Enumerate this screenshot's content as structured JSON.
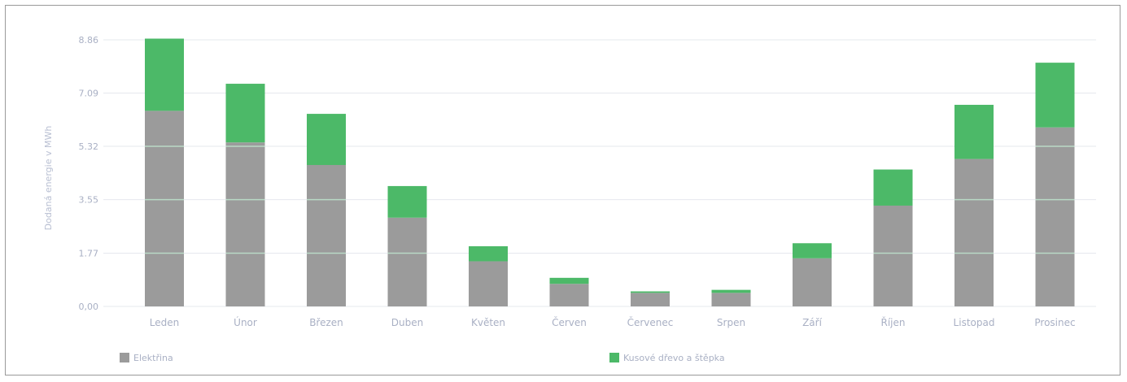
{
  "chart_data": {
    "type": "bar",
    "stacked": true,
    "ylabel": "Dodaná energie v MWh",
    "ylim": [
      0,
      8.86
    ],
    "yticks": [
      "8.86",
      "7.09",
      "5.32",
      "3.55",
      "1.77",
      "0,00"
    ],
    "ytick_values": [
      8.86,
      7.09,
      5.32,
      3.55,
      1.77,
      0
    ],
    "grid": true,
    "legend_position": "bottom",
    "categories": [
      "Leden",
      "Únor",
      "Březen",
      "Duben",
      "Květen",
      "Červen",
      "Červenec",
      "Srpen",
      "Září",
      "Říjen",
      "Listopad",
      "Prosinec"
    ],
    "series": [
      {
        "name": "Elektřina",
        "color": "#9b9b9b",
        "values": [
          6.5,
          5.45,
          4.7,
          2.95,
          1.5,
          0.75,
          0.45,
          0.45,
          1.6,
          3.35,
          4.9,
          5.95
        ]
      },
      {
        "name": "Kusové dřevo a štěpka",
        "color": "#4cb968",
        "values": [
          2.4,
          1.95,
          1.7,
          1.05,
          0.5,
          0.2,
          0.05,
          0.1,
          0.5,
          1.2,
          1.8,
          2.15
        ]
      }
    ]
  }
}
